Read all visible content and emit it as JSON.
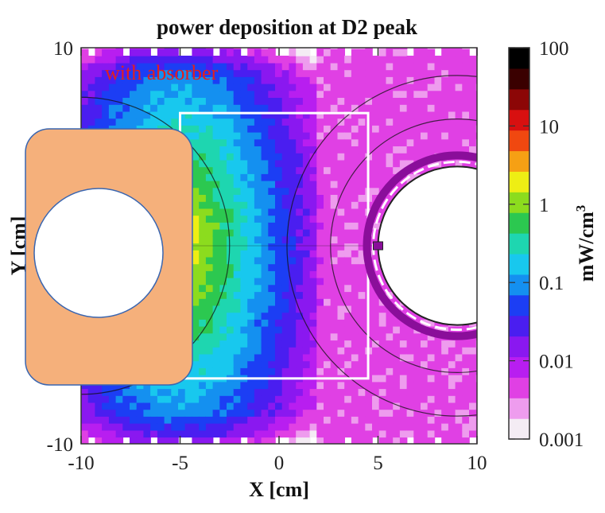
{
  "chart_data": {
    "type": "heatmap",
    "title": "power deposition at D2 peak",
    "annotation": "with absorber",
    "xlabel": "X [cm]",
    "ylabel": "Y [cm]",
    "colorbar_label": "mW/cm",
    "colorbar_label_superscript": "3",
    "xlim": [
      -10,
      10
    ],
    "ylim": [
      -10,
      10
    ],
    "x_ticks": [
      "-10",
      "-5",
      "0",
      "5",
      "10"
    ],
    "y_ticks": [
      "10",
      "-10"
    ],
    "colorbar_scale": "log",
    "colorbar_range": [
      0.001,
      100
    ],
    "colorbar_ticks": [
      "100",
      "10",
      "1",
      "0.1",
      "0.01",
      "0.001"
    ],
    "color_scale": [
      "#f4ecf4",
      "#ee9cee",
      "#e040e4",
      "#b81ef0",
      "#8a18f0",
      "#4a1ef0",
      "#1c3ef4",
      "#1490f0",
      "#18c8ee",
      "#1ed6b0",
      "#2cc850",
      "#8cdc1e",
      "#eeee14",
      "#f6a014",
      "#f04810",
      "#d81010",
      "#8c0606",
      "#3a0000",
      "#000000"
    ],
    "deposition_profile": {
      "description_free": true,
      "hotspot_x_cm": -5,
      "hotspot_value_mW_cm3": 3,
      "far_value_mW_cm3": 0.004
    },
    "highlight_region_x_cm": [
      -5,
      4.5
    ],
    "highlight_region_y_cm": [
      -6.7,
      6.7
    ],
    "beam_pipe_center_x_cm": 9,
    "beam_pipe_radius_cm": 4
  }
}
